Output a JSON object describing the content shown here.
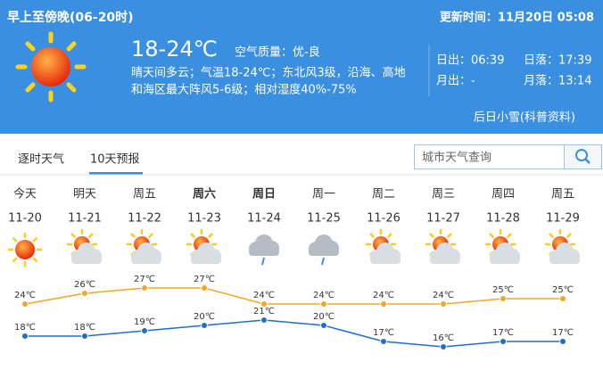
{
  "header": {
    "period": "早上至傍晚(06-20时)",
    "update": "更新时间：11月20日 05:08",
    "temp": "18-24℃",
    "air": "空气质量：优-良",
    "desc": [
      "晴天间多云；气温18-24℃；东北风3级，沿海、高地",
      "和海区最大阵风5-6级；相对湿度40%-75%"
    ],
    "sunrise": "日出：06:39",
    "sunset": "日落：17:39",
    "moonrise": "月出：-",
    "moonset": "月落：13:14",
    "link": "后日小雪(科普资料)"
  },
  "tabs": [
    "逐时天气",
    "10天预报"
  ],
  "search": {
    "placeholder": "城市天气查询"
  },
  "forecast": {
    "days": [
      "今天",
      "明天",
      "周五",
      "周六",
      "周日",
      "周一",
      "周二",
      "周三",
      "周四",
      "周五"
    ],
    "dates": [
      "11-20",
      "11-21",
      "11-22",
      "11-23",
      "11-24",
      "11-25",
      "11-26",
      "11-27",
      "11-28",
      "11-29"
    ],
    "weather": [
      "sunny",
      "partly-cloudy",
      "partly-cloudy",
      "partly-cloudy",
      "rain",
      "rain",
      "partly-cloudy",
      "partly-cloudy",
      "partly-cloudy",
      "partly-cloudy"
    ],
    "high": {
      "color": "#f5a623",
      "values": [
        24,
        26,
        27,
        27,
        24,
        24,
        24,
        24,
        25,
        25
      ],
      "value_labels": [
        "24℃",
        "26℃",
        "27℃",
        "27℃",
        "24℃",
        "24℃",
        "24℃",
        "24℃",
        "25℃",
        "25℃"
      ]
    },
    "low": {
      "color": "#1f6fc5",
      "values": [
        18,
        18,
        19,
        20,
        21,
        20,
        17,
        16,
        17,
        17
      ],
      "value_labels": [
        "18℃",
        "18℃",
        "19℃",
        "20℃",
        "21℃",
        "20℃",
        "17℃",
        "16℃",
        "17℃",
        "17℃"
      ]
    }
  }
}
